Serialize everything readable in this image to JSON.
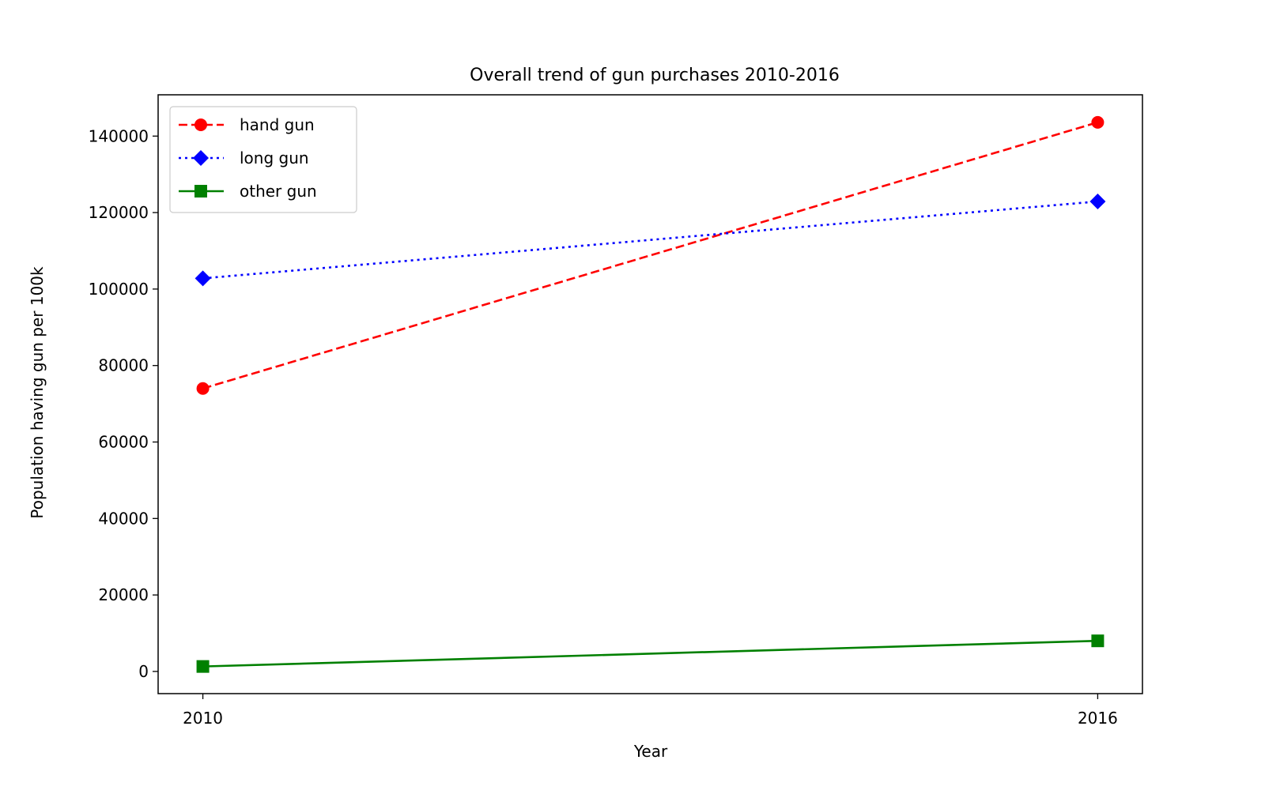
{
  "chart_data": {
    "type": "line",
    "title": "Overall trend of gun purchases 2010-2016",
    "xlabel": "Year",
    "ylabel": "Population having gun per 100k",
    "x": [
      2010,
      2016
    ],
    "x_ticks": [
      "2010",
      "2016"
    ],
    "y_ticks": [
      "0",
      "20000",
      "40000",
      "60000",
      "80000",
      "100000",
      "120000",
      "140000"
    ],
    "ylim": [
      -5800,
      150800
    ],
    "xlim": [
      2009.7,
      2016.3
    ],
    "grid": false,
    "legend": "top-left",
    "series": [
      {
        "name": "hand gun",
        "values": [
          74000,
          143600
        ],
        "color": "#ff0000",
        "linestyle": "dashed",
        "marker": "circle"
      },
      {
        "name": "long gun",
        "values": [
          102800,
          122900
        ],
        "color": "#0000ff",
        "linestyle": "dotted",
        "marker": "diamond"
      },
      {
        "name": "other gun",
        "values": [
          1300,
          8000
        ],
        "color": "#008000",
        "linestyle": "solid",
        "marker": "square"
      }
    ]
  }
}
